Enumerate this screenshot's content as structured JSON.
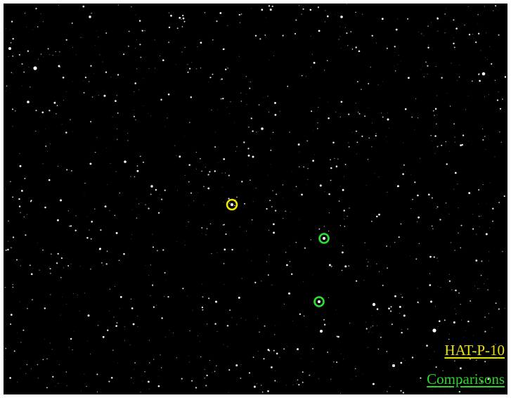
{
  "labels": {
    "target": "HAT-P-10",
    "comparisons": "Comparisons"
  }
}
